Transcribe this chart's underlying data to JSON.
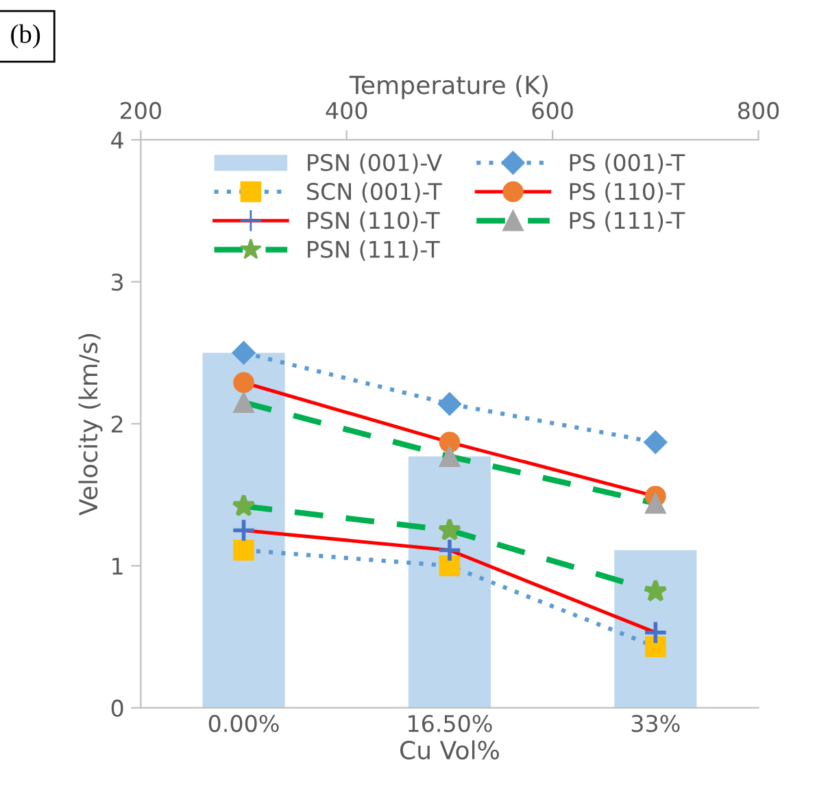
{
  "chart_data": {
    "type": "bar",
    "xlabel": "Cu Vol%",
    "ylabel": "Velocity (km/s)",
    "x2label": "Temperature (K)",
    "categories": [
      "0.00%",
      "16.50%",
      "33%"
    ],
    "ylim": [
      0,
      4
    ],
    "yticks": [
      0,
      1,
      2,
      3,
      4
    ],
    "x2lim": [
      200,
      800
    ],
    "x2ticks": [
      200,
      400,
      600,
      800
    ],
    "legend": "top",
    "grid": false,
    "annotations": [
      "(b)"
    ],
    "series": [
      {
        "name": "PSN (001)-V",
        "color": "#bdd7ee",
        "values": [
          2.5,
          1.77,
          1.11
        ]
      },
      {
        "name": "PS (001)-T",
        "type": "line",
        "axis": "x2",
        "x": [
          300,
          500,
          700
        ],
        "color": "#5b9bd5",
        "colors": [
          "#5b9bd5",
          "#5b9bd5",
          "#5b9bd5"
        ],
        "marker": "diamond",
        "line_style": "dotted",
        "values": [
          2.5,
          2.14,
          1.87
        ]
      },
      {
        "name": "SCN (001)-T",
        "type": "line",
        "axis": "x2",
        "x": [
          300,
          500,
          700
        ],
        "color": "#5b9bd5",
        "colors": [
          "#ffc000",
          "#ffc000",
          "#ffc000"
        ],
        "marker": "square",
        "line_style": "dotted",
        "values": [
          1.11,
          1.0,
          0.43
        ]
      },
      {
        "name": "PS (110)-T",
        "type": "line",
        "axis": "x2",
        "x": [
          300,
          500,
          700
        ],
        "color": "#ff0000",
        "colors": [
          "#ed7d31",
          "#ed7d31",
          "#ed7d31"
        ],
        "marker": "circle",
        "line_style": "solid",
        "values": [
          2.29,
          1.87,
          1.49
        ]
      },
      {
        "name": "PSN (110)-T",
        "type": "line",
        "axis": "x2",
        "x": [
          300,
          500,
          700
        ],
        "color": "#ff0000",
        "colors": [
          "#4472c4",
          "#4472c4",
          "#4472c4"
        ],
        "marker": "cross",
        "line_style": "solid",
        "values": [
          1.25,
          1.11,
          0.53
        ]
      },
      {
        "name": "PS (111)-T",
        "type": "line",
        "axis": "x2",
        "x": [
          300,
          500,
          700
        ],
        "color": "#00b050",
        "colors": [
          "#a5a5a5",
          "#a5a5a5",
          "#a5a5a5"
        ],
        "marker": "triangle",
        "line_style": "dashed",
        "values": [
          2.15,
          1.77,
          1.44
        ]
      },
      {
        "name": "PSN (111)-T",
        "type": "line",
        "axis": "x2",
        "x": [
          300,
          500,
          700
        ],
        "color": "#00b050",
        "colors": [
          "#70ad47",
          "#70ad47",
          "#70ad47"
        ],
        "marker": "star",
        "line_style": "dashed",
        "values": [
          1.42,
          1.25,
          0.82
        ]
      }
    ]
  }
}
